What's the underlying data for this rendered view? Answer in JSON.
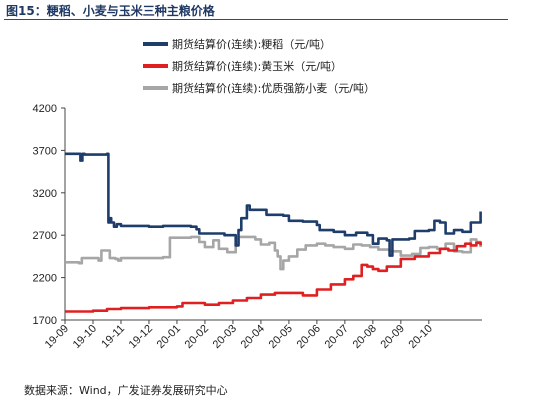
{
  "title": "图15：粳稻、小麦与玉米三种主粮价格",
  "source": "数据来源：Wind，广发证券发展研究中心",
  "chart_data": {
    "type": "line",
    "title": "图15：粳稻、小麦与玉米三种主粮价格",
    "ylim": [
      1700,
      4200
    ],
    "yticks": [
      "1700",
      "2200",
      "2700",
      "3200",
      "3700",
      "4200"
    ],
    "xlim": [
      0,
      14.9
    ],
    "xticks": [
      "19-09",
      "19-10",
      "19-11",
      "19-12",
      "20-01",
      "20-02",
      "20-03",
      "20-04",
      "20-05",
      "20-06",
      "20-07",
      "20-08",
      "20-09",
      "20-10"
    ],
    "legend_position": "top",
    "grid": false,
    "series": [
      {
        "name": "期货结算价(连续):粳稻（元/吨）",
        "color": "#1f3d6b",
        "x": [
          0,
          0.5,
          0.55,
          0.62,
          0.7,
          1.5,
          1.55,
          1.6,
          1.65,
          1.75,
          1.85,
          2.0,
          3.0,
          3.5,
          4.0,
          4.5,
          4.7,
          4.8,
          5.0,
          5.3,
          5.7,
          6.1,
          6.2,
          6.3,
          6.5,
          6.6,
          7.0,
          7.2,
          7.8,
          8.0,
          8.5,
          9.0,
          9.1,
          9.3,
          9.6,
          10.0,
          10.4,
          10.8,
          11.0,
          11.2,
          11.5,
          11.6,
          11.7,
          11.9,
          12.0,
          12.3,
          12.5,
          12.8,
          13.0,
          13.2,
          13.4,
          13.6,
          13.9,
          14.2,
          14.5,
          14.7,
          14.85
        ],
        "values": [
          3660,
          3660,
          3580,
          3660,
          3650,
          3660,
          2850,
          2900,
          2850,
          2800,
          2830,
          2810,
          2800,
          2810,
          2810,
          2800,
          2770,
          2720,
          2720,
          2720,
          2700,
          2580,
          2760,
          2900,
          3050,
          3000,
          3000,
          2940,
          2930,
          2870,
          2860,
          2820,
          2760,
          2760,
          2740,
          2700,
          2730,
          2700,
          2600,
          2660,
          2640,
          2460,
          2650,
          2650,
          2650,
          2660,
          2750,
          2750,
          2760,
          2870,
          2850,
          2720,
          2760,
          2740,
          2850,
          2850,
          2980
        ]
      },
      {
        "name": "期货结算价(连续):黄玉米（元/吨）",
        "color": "#e02020",
        "x": [
          0,
          1.0,
          1.5,
          2.0,
          3.0,
          4.0,
          4.2,
          4.5,
          5.0,
          5.5,
          6.0,
          6.5,
          7.0,
          7.5,
          8.0,
          8.5,
          9.0,
          9.5,
          10.0,
          10.3,
          10.6,
          10.8,
          11.0,
          11.2,
          11.5,
          12.0,
          12.5,
          13.0,
          13.4,
          13.7,
          14.0,
          14.3,
          14.5,
          14.7,
          14.85
        ],
        "values": [
          1800,
          1810,
          1830,
          1840,
          1850,
          1860,
          1900,
          1900,
          1880,
          1900,
          1930,
          1960,
          2000,
          2020,
          2020,
          1990,
          2060,
          2120,
          2180,
          2220,
          2350,
          2330,
          2300,
          2280,
          2330,
          2420,
          2450,
          2490,
          2540,
          2520,
          2570,
          2600,
          2580,
          2610,
          2580
        ]
      },
      {
        "name": "期货结算价(连续):优质强筋小麦（元/吨）",
        "color": "#a6a6a6",
        "x": [
          0,
          0.5,
          0.6,
          1.2,
          1.3,
          1.5,
          1.6,
          1.8,
          1.9,
          2.0,
          2.5,
          3.0,
          3.5,
          3.7,
          3.75,
          4.0,
          4.5,
          4.8,
          5.0,
          5.3,
          5.5,
          5.8,
          6.1,
          6.2,
          6.5,
          6.8,
          7.0,
          7.3,
          7.5,
          7.6,
          7.7,
          7.8,
          8.0,
          8.3,
          8.6,
          9.0,
          9.3,
          9.6,
          10.0,
          10.3,
          10.6,
          10.9,
          11.2,
          11.6,
          12.0,
          12.4,
          12.7,
          13.0,
          13.3,
          13.6,
          13.9,
          14.2,
          14.5,
          14.7,
          14.85
        ],
        "values": [
          2380,
          2370,
          2430,
          2400,
          2520,
          2520,
          2430,
          2420,
          2400,
          2430,
          2430,
          2430,
          2440,
          2440,
          2670,
          2670,
          2680,
          2620,
          2560,
          2640,
          2540,
          2500,
          2600,
          2680,
          2680,
          2650,
          2590,
          2610,
          2520,
          2450,
          2300,
          2400,
          2450,
          2530,
          2580,
          2600,
          2580,
          2560,
          2540,
          2590,
          2580,
          2560,
          2530,
          2510,
          2460,
          2480,
          2550,
          2560,
          2540,
          2600,
          2510,
          2500,
          2650,
          2620,
          2560
        ]
      }
    ]
  }
}
